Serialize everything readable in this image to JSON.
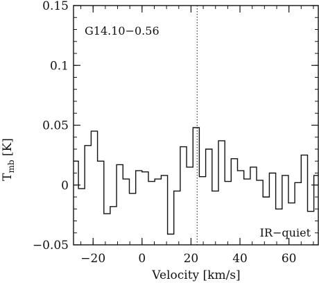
{
  "chart_data": {
    "type": "line",
    "drawstyle": "steps-mid",
    "source_label": "G14.10−0.56",
    "classification_label": "IR−quiet",
    "xlabel": "Velocity [km/s]",
    "ylabel_main": "T",
    "ylabel_sub": "mb",
    "ylabel_unit": " [K]",
    "xlim": [
      -28,
      72
    ],
    "ylim": [
      -0.05,
      0.15
    ],
    "xticks": [
      -20,
      0,
      20,
      40,
      60
    ],
    "xtick_labels": [
      "−20",
      "0",
      "20",
      "40",
      "60"
    ],
    "yticks": [
      -0.05,
      0,
      0.05,
      0.1,
      0.15
    ],
    "ytick_labels": [
      "−0.05",
      "0",
      "0.05",
      "0.1",
      "0.15"
    ],
    "vline_x": 22.5,
    "channel_width": 2.6,
    "series": [
      {
        "x": [
          -27.3,
          -24.7,
          -22.1,
          -19.5,
          -16.9,
          -14.3,
          -11.7,
          -9.1,
          -6.5,
          -3.9,
          -1.3,
          1.3,
          3.9,
          6.5,
          9.1,
          11.7,
          14.3,
          16.9,
          19.5,
          22.1,
          24.7,
          27.3,
          29.9,
          32.5,
          35.1,
          37.7,
          40.3,
          42.9,
          45.5,
          48.1,
          50.7,
          53.3,
          55.9,
          58.5,
          61.1,
          63.7,
          66.3,
          68.9,
          71.5
        ],
        "values": [
          0.02,
          -0.003,
          0.033,
          0.045,
          0.02,
          -0.024,
          -0.018,
          0.017,
          0.005,
          -0.007,
          0.012,
          0.011,
          0.003,
          0.005,
          0.008,
          -0.041,
          -0.005,
          0.032,
          0.015,
          0.048,
          0.007,
          0.03,
          -0.005,
          0.037,
          0.003,
          0.022,
          0.012,
          0.005,
          0.015,
          0.004,
          -0.01,
          0.01,
          -0.02,
          0.008,
          -0.015,
          0.002,
          0.025,
          -0.022,
          0.008
        ]
      }
    ]
  }
}
